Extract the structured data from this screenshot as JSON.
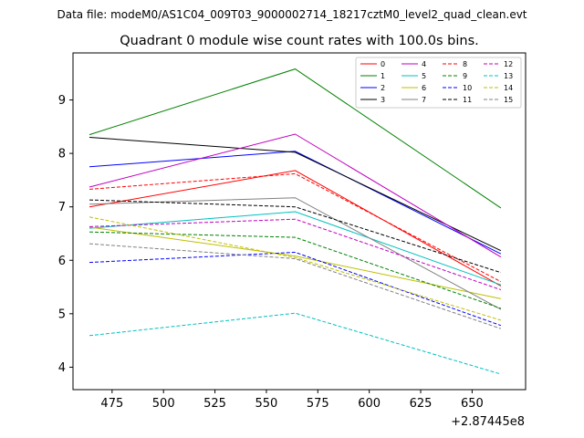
{
  "chart_data": {
    "type": "line",
    "suptitle": "Data file: modeM0/AS1C04_009T03_9000002714_18217cztM0_level2_quad_clean.evt",
    "title": "Quadrant 0 module wise count rates with 100.0s bins.",
    "xlabel": "",
    "ylabel": "",
    "x_offset_label": "+2.87445e8",
    "x": [
      464,
      564,
      664
    ],
    "xlim": [
      456,
      676
    ],
    "ylim": [
      3.58,
      9.88
    ],
    "xticks": [
      475,
      500,
      525,
      550,
      575,
      600,
      625,
      650
    ],
    "yticks": [
      4,
      5,
      6,
      7,
      8,
      9
    ],
    "grid": false,
    "legend_position": "top-right",
    "legend_columns": 4,
    "series": [
      {
        "name": "0",
        "color": "#ff0000",
        "dash": "solid",
        "values": [
          7.0,
          7.68,
          5.52
        ]
      },
      {
        "name": "1",
        "color": "#008000",
        "dash": "solid",
        "values": [
          8.35,
          9.58,
          6.98
        ]
      },
      {
        "name": "2",
        "color": "#0000ff",
        "dash": "solid",
        "values": [
          7.75,
          8.04,
          6.12
        ]
      },
      {
        "name": "3",
        "color": "#000000",
        "dash": "solid",
        "values": [
          8.3,
          8.02,
          6.18
        ]
      },
      {
        "name": "4",
        "color": "#bf00bf",
        "dash": "solid",
        "values": [
          7.37,
          8.36,
          6.06
        ]
      },
      {
        "name": "5",
        "color": "#00bfbf",
        "dash": "solid",
        "values": [
          6.6,
          6.91,
          5.54
        ]
      },
      {
        "name": "6",
        "color": "#bfbf00",
        "dash": "solid",
        "values": [
          6.62,
          6.08,
          5.28
        ]
      },
      {
        "name": "7",
        "color": "#808080",
        "dash": "solid",
        "values": [
          7.05,
          7.17,
          5.08
        ]
      },
      {
        "name": "8",
        "color": "#ff0000",
        "dash": "dashed",
        "values": [
          7.33,
          7.62,
          5.6
        ]
      },
      {
        "name": "9",
        "color": "#008000",
        "dash": "dashed",
        "values": [
          6.53,
          6.43,
          5.1
        ]
      },
      {
        "name": "10",
        "color": "#0000ff",
        "dash": "dashed",
        "values": [
          5.96,
          6.15,
          4.78
        ]
      },
      {
        "name": "11",
        "color": "#000000",
        "dash": "dashed",
        "values": [
          7.13,
          7.0,
          5.77
        ]
      },
      {
        "name": "12",
        "color": "#bf00bf",
        "dash": "dashed",
        "values": [
          6.63,
          6.77,
          5.45
        ]
      },
      {
        "name": "13",
        "color": "#00bfbf",
        "dash": "dashed",
        "values": [
          4.59,
          5.01,
          3.87
        ]
      },
      {
        "name": "14",
        "color": "#bfbf00",
        "dash": "dashed",
        "values": [
          6.81,
          6.05,
          4.88
        ]
      },
      {
        "name": "15",
        "color": "#808080",
        "dash": "dashed",
        "values": [
          6.31,
          6.03,
          4.72
        ]
      }
    ]
  }
}
